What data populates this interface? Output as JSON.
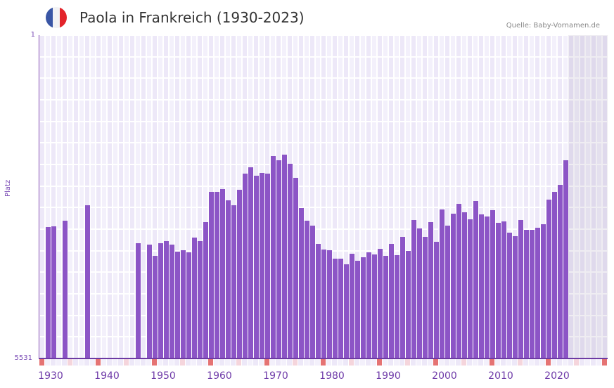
{
  "header": {
    "title": "Paola in Frankreich (1930-2023)",
    "source": "Quelle: Baby-Vornamen.de",
    "flag_icon": "france-flag-icon",
    "flag_colors": [
      "#3a56a5",
      "#f2f2f4",
      "#e3242b"
    ]
  },
  "colors": {
    "bar": "#8c55c6",
    "grid_a": "#ede8f8",
    "grid_b": "#f3f0fb",
    "axis": "#6d3aa3",
    "marker_decade": "#e57373",
    "marker_half": "#f5d5dc",
    "future_shade": "#e3def0"
  },
  "chart_data": {
    "type": "bar",
    "title": "Paola in Frankreich (1930-2023)",
    "xlabel": "",
    "ylabel": "Platz",
    "y_scale": "log",
    "y_inverted": true,
    "ylim": [
      1,
      5531
    ],
    "y_ticks": [
      "1",
      "5531"
    ],
    "x_range": [
      1930,
      2030
    ],
    "x_ticks": [
      "1930",
      "1940",
      "1950",
      "1960",
      "1970",
      "1980",
      "1990",
      "2000",
      "2010",
      "2020"
    ],
    "grid": true,
    "legend": null,
    "future_shaded_from": 2024,
    "series": [
      {
        "name": "Platz",
        "points": [
          {
            "year": 1931,
            "rank": 167
          },
          {
            "year": 1932,
            "rank": 163
          },
          {
            "year": 1934,
            "rank": 141
          },
          {
            "year": 1938,
            "rank": 93
          },
          {
            "year": 1947,
            "rank": 256
          },
          {
            "year": 1949,
            "rank": 266
          },
          {
            "year": 1950,
            "rank": 359
          },
          {
            "year": 1951,
            "rank": 256
          },
          {
            "year": 1952,
            "rank": 242
          },
          {
            "year": 1953,
            "rank": 266
          },
          {
            "year": 1954,
            "rank": 321
          },
          {
            "year": 1955,
            "rank": 309
          },
          {
            "year": 1956,
            "rank": 327
          },
          {
            "year": 1957,
            "rank": 221
          },
          {
            "year": 1958,
            "rank": 242
          },
          {
            "year": 1959,
            "rank": 146
          },
          {
            "year": 1960,
            "rank": 65
          },
          {
            "year": 1961,
            "rank": 65
          },
          {
            "year": 1962,
            "rank": 61
          },
          {
            "year": 1963,
            "rank": 82
          },
          {
            "year": 1964,
            "rank": 93
          },
          {
            "year": 1965,
            "rank": 62
          },
          {
            "year": 1966,
            "rank": 40
          },
          {
            "year": 1967,
            "rank": 34
          },
          {
            "year": 1968,
            "rank": 42
          },
          {
            "year": 1969,
            "rank": 39
          },
          {
            "year": 1970,
            "rank": 40
          },
          {
            "year": 1971,
            "rank": 25
          },
          {
            "year": 1972,
            "rank": 28
          },
          {
            "year": 1973,
            "rank": 24
          },
          {
            "year": 1974,
            "rank": 31
          },
          {
            "year": 1975,
            "rank": 45
          },
          {
            "year": 1976,
            "rank": 100
          },
          {
            "year": 1977,
            "rank": 141
          },
          {
            "year": 1978,
            "rank": 160
          },
          {
            "year": 1979,
            "rank": 261
          },
          {
            "year": 1980,
            "rank": 303
          },
          {
            "year": 1981,
            "rank": 309
          },
          {
            "year": 1982,
            "rank": 387
          },
          {
            "year": 1983,
            "rank": 387
          },
          {
            "year": 1984,
            "rank": 449
          },
          {
            "year": 1985,
            "rank": 339
          },
          {
            "year": 1986,
            "rank": 409
          },
          {
            "year": 1987,
            "rank": 373
          },
          {
            "year": 1988,
            "rank": 327
          },
          {
            "year": 1989,
            "rank": 345
          },
          {
            "year": 1990,
            "rank": 297
          },
          {
            "year": 1991,
            "rank": 359
          },
          {
            "year": 1992,
            "rank": 261
          },
          {
            "year": 1993,
            "rank": 352
          },
          {
            "year": 1994,
            "rank": 216
          },
          {
            "year": 1995,
            "rank": 315
          },
          {
            "year": 1996,
            "rank": 138
          },
          {
            "year": 1997,
            "rank": 173
          },
          {
            "year": 1998,
            "rank": 216
          },
          {
            "year": 1999,
            "rank": 146
          },
          {
            "year": 2000,
            "rank": 247
          },
          {
            "year": 2001,
            "rank": 104
          },
          {
            "year": 2002,
            "rank": 160
          },
          {
            "year": 2003,
            "rank": 117
          },
          {
            "year": 2004,
            "rank": 90
          },
          {
            "year": 2005,
            "rank": 112
          },
          {
            "year": 2006,
            "rank": 135
          },
          {
            "year": 2007,
            "rank": 83
          },
          {
            "year": 2008,
            "rank": 119
          },
          {
            "year": 2009,
            "rank": 126
          },
          {
            "year": 2010,
            "rank": 106
          },
          {
            "year": 2011,
            "rank": 149
          },
          {
            "year": 2012,
            "rank": 143
          },
          {
            "year": 2013,
            "rank": 193
          },
          {
            "year": 2014,
            "rank": 212
          },
          {
            "year": 2015,
            "rank": 138
          },
          {
            "year": 2016,
            "rank": 179
          },
          {
            "year": 2017,
            "rank": 179
          },
          {
            "year": 2018,
            "rank": 170
          },
          {
            "year": 2019,
            "rank": 154
          },
          {
            "year": 2020,
            "rank": 80
          },
          {
            "year": 2021,
            "rank": 65
          },
          {
            "year": 2022,
            "rank": 54
          },
          {
            "year": 2023,
            "rank": 28
          }
        ]
      }
    ]
  }
}
